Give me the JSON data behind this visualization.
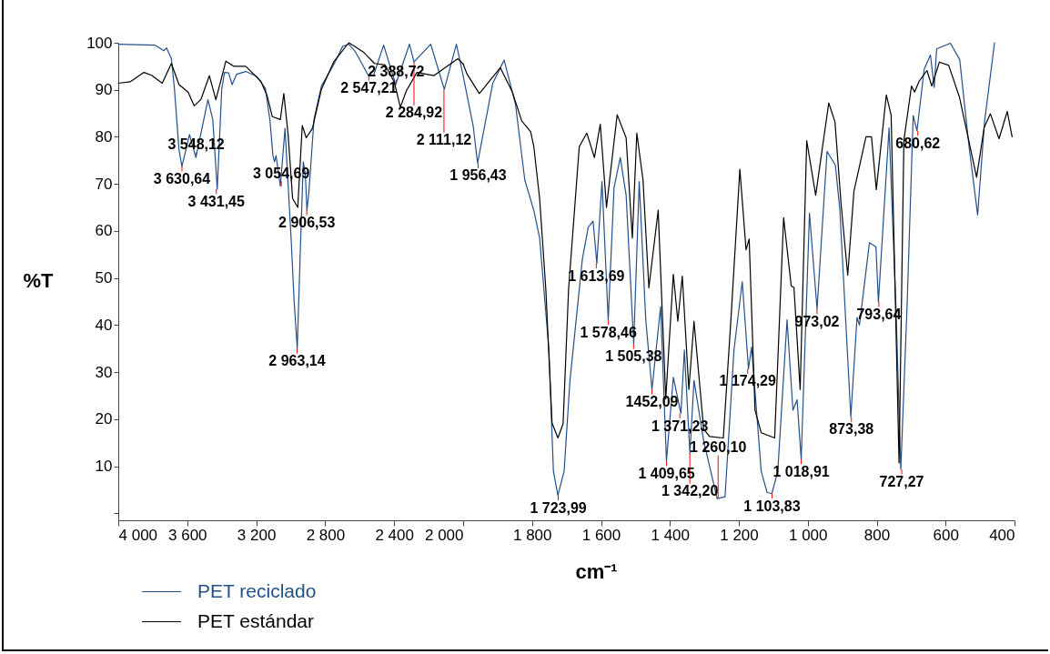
{
  "chart_data": [
    {
      "type": "line",
      "ylabel": "%T",
      "xlim": [
        4000,
        2000
      ],
      "xticks": [
        {
          "value": 4000,
          "label": "4 000"
        },
        {
          "value": 3600,
          "label": "3 600"
        },
        {
          "value": 3200,
          "label": "3 200"
        },
        {
          "value": 2800,
          "label": "2 800"
        },
        {
          "value": 2400,
          "label": "2 400"
        },
        {
          "value": 2000,
          "label": "2 000"
        }
      ],
      "ylim": [
        -1.5,
        100
      ],
      "yticks": [
        {
          "value": 0,
          "label": null
        },
        10,
        20,
        30,
        40,
        50,
        60,
        70,
        80,
        90,
        100
      ],
      "legend": "bottom left",
      "series": [
        {
          "name": "PET reciclado",
          "color": "#24508a",
          "x": [
            4000,
            3789,
            3736,
            3720,
            3692,
            3674,
            3648,
            3631,
            3587,
            3550,
            3480,
            3452,
            3426,
            3400,
            3384,
            3360,
            3340,
            3314,
            3261,
            3199,
            3147,
            3121,
            3103,
            3094,
            3085,
            3060,
            3033,
            2997,
            2980,
            2962,
            2945,
            2927,
            2915,
            2906,
            2895,
            2865,
            2822,
            2751,
            2699,
            2663,
            2627,
            2592,
            2549,
            2520,
            2461,
            2391,
            2311,
            2285,
            2188,
            2109,
            2039,
            2000
          ],
          "values": [
            99.7,
            99.5,
            98.3,
            98.9,
            96.6,
            90.1,
            77.3,
            73.7,
            80.5,
            75.6,
            87.9,
            83.7,
            68.9,
            90.1,
            93.7,
            93.6,
            91.1,
            93.3,
            93.9,
            92.9,
            90.3,
            83.7,
            76,
            74.7,
            76,
            69.5,
            81.8,
            57.9,
            45,
            35,
            55,
            74.7,
            72,
            64.4,
            68,
            83.7,
            90.8,
            95.3,
            99.2,
            99.7,
            98.2,
            95.9,
            93,
            93,
            99.5,
            91.1,
            99.7,
            95.9,
            99.7,
            90.1,
            99.7,
            93
          ]
        },
        {
          "name": "PET estándar",
          "color": "#000000",
          "x": [
            4000,
            3931,
            3851,
            3807,
            3745,
            3692,
            3648,
            3595,
            3560,
            3520,
            3472,
            3434,
            3376,
            3331,
            3261,
            3173,
            3138,
            3107,
            3060,
            3040,
            3015,
            2989,
            2959,
            2933,
            2910,
            2874,
            2822,
            2751,
            2663,
            2627,
            2575,
            2514,
            2453,
            2400,
            2364,
            2329,
            2268,
            2170,
            2109,
            2030,
            2000
          ],
          "values": [
            91.4,
            91.7,
            93.7,
            93.1,
            91.4,
            95.6,
            91.1,
            89.5,
            86.6,
            88,
            93,
            87.9,
            96.1,
            95,
            95,
            91.8,
            88.9,
            84.3,
            83.7,
            89.2,
            80.5,
            66.9,
            65,
            82.4,
            79.8,
            81.8,
            90.1,
            95.9,
            100,
            99.2,
            97.9,
            95.6,
            95.3,
            91.7,
            86.3,
            89.8,
            93.7,
            93,
            94.6,
            96.6,
            95.5
          ]
        }
      ],
      "annotations": [
        {
          "text": "3 630,64",
          "x": 3630.64,
          "y": 73.7
        },
        {
          "text": "3 548,12",
          "x": 3548.12,
          "y": 75.6
        },
        {
          "text": "3 431,45",
          "x": 3431.45,
          "y": 68.9
        },
        {
          "text": "3 054,69",
          "x": 3054.69,
          "y": 69.5
        },
        {
          "text": "2 963,14",
          "x": 2963.14,
          "y": 35
        },
        {
          "text": "2 906,53",
          "x": 2906.53,
          "y": 64.4
        },
        {
          "text": "2 547,21",
          "x": 2547.21,
          "y": 93
        },
        {
          "text": "2 388,72",
          "x": 2388.72,
          "y": 91.1
        },
        {
          "text": "2 284,92",
          "x": 2284.92,
          "y": 95.9
        },
        {
          "text": "2 111,12",
          "x": 2111.12,
          "y": 90.1
        }
      ]
    },
    {
      "type": "line",
      "xlabel": "cm⁻¹",
      "xlim": [
        2000,
        400
      ],
      "xticks": [
        {
          "value": 1800,
          "label": "1 800"
        },
        {
          "value": 1600,
          "label": "1 600"
        },
        {
          "value": 1400,
          "label": "1 400"
        },
        {
          "value": 1200,
          "label": "1 200"
        },
        {
          "value": 1000,
          "label": "1 000"
        },
        800,
        600,
        400
      ],
      "ylim": [
        -1.5,
        100
      ],
      "tick_labels": "x",
      "series": [
        {
          "color": "#24508a",
          "x": [
            2000,
            1971,
            1958,
            1914,
            1881,
            1848,
            1821,
            1795,
            1778,
            1751,
            1738,
            1725,
            1707,
            1690,
            1654,
            1637,
            1623,
            1612,
            1597,
            1579,
            1562,
            1544,
            1527,
            1505,
            1489,
            1470,
            1452,
            1427,
            1410,
            1390,
            1368,
            1358,
            1342,
            1330,
            1302,
            1263,
            1240,
            1214,
            1190,
            1172,
            1163,
            1135,
            1118,
            1104,
            1087,
            1060,
            1043,
            1031,
            1019,
            995,
            973,
            944,
            920,
            907,
            875,
            857,
            850,
            821,
            802,
            795,
            764,
            744,
            730,
            712,
            694,
            683,
            662,
            644,
            633,
            626,
            586,
            559,
            532,
            507,
            487,
            458
          ],
          "values": [
            93,
            82.4,
            74.4,
            91.4,
            96.3,
            86.9,
            70.8,
            64.4,
            58.5,
            34.7,
            8.9,
            3.8,
            8.9,
            28.2,
            54,
            60.8,
            62.1,
            53.1,
            70.5,
            41.1,
            69.2,
            75.6,
            67.6,
            36,
            70.5,
            41.1,
            26.3,
            43.9,
            11.1,
            28.9,
            21.2,
            34.7,
            12.8,
            28.2,
            15.4,
            3.1,
            3.5,
            34.7,
            49.2,
            30.7,
            35.3,
            8.9,
            4.4,
            4.2,
            8.9,
            41.1,
            21.9,
            24.1,
            11.5,
            63.8,
            43.4,
            76.9,
            74,
            64.7,
            20.5,
            41.6,
            40,
            57.5,
            56.6,
            44.9,
            81.9,
            43.6,
            9.3,
            43.6,
            84.5,
            81.3,
            94.4,
            97.4,
            90.5,
            98.7,
            99.9,
            96.4,
            78,
            63.4,
            83.2,
            100
          ]
        },
        {
          "color": "#000000",
          "x": [
            2000,
            1989,
            1953,
            1892,
            1857,
            1830,
            1804,
            1795,
            1778,
            1760,
            1742,
            1725,
            1710,
            1694,
            1663,
            1641,
            1619,
            1602,
            1584,
            1553,
            1527,
            1509,
            1496,
            1478,
            1461,
            1434,
            1412,
            1390,
            1377,
            1364,
            1345,
            1330,
            1302,
            1285,
            1245,
            1223,
            1197,
            1179,
            1170,
            1153,
            1135,
            1096,
            1070,
            1048,
            1040,
            1022,
            1003,
            977,
            939,
            921,
            903,
            884,
            866,
            831,
            815,
            801,
            772,
            758,
            735,
            721,
            699,
            690,
            677,
            654,
            640,
            618,
            591,
            560,
            533,
            510,
            488,
            470,
            445,
            421,
            407
          ],
          "values": [
            95.5,
            93.4,
            89.2,
            94.7,
            89.5,
            83.4,
            81.1,
            78,
            66.9,
            47.6,
            19.2,
            16,
            19,
            47.6,
            77.9,
            80.8,
            75.6,
            82.7,
            65,
            84.7,
            79.8,
            58.5,
            80.8,
            70.8,
            47.9,
            64.4,
            24.3,
            50.8,
            40.8,
            50.4,
            26.3,
            40.8,
            17.9,
            16.3,
            16,
            41.1,
            73.1,
            56,
            58.3,
            21.9,
            17.1,
            16,
            62.8,
            48.3,
            48,
            26.3,
            79.2,
            67.6,
            87.2,
            83.2,
            65.5,
            50.6,
            68.4,
            80,
            80,
            68.8,
            88.9,
            84.6,
            10.7,
            79.3,
            90.8,
            89.5,
            91.8,
            94.1,
            90.8,
            95.9,
            95.2,
            88.5,
            79.3,
            71.4,
            82,
            84.9,
            79.6,
            85.4,
            80
          ]
        }
      ],
      "annotations": [
        {
          "text": "1 956,43",
          "x": 1956.43,
          "y": 74.4
        },
        {
          "text": "1 723,99",
          "x": 1723.99,
          "y": 3.8
        },
        {
          "text": "1 613,69",
          "x": 1613.69,
          "y": 53.1
        },
        {
          "text": "1 578,46",
          "x": 1578.46,
          "y": 41.1
        },
        {
          "text": "1 505,38",
          "x": 1505.38,
          "y": 36
        },
        {
          "text": "1452,09",
          "x": 1452.09,
          "y": 26.3
        },
        {
          "text": "1 409,65",
          "x": 1409.65,
          "y": 11.1
        },
        {
          "text": "1 371,23",
          "x": 1371.23,
          "y": 21.2
        },
        {
          "text": "1 342,20",
          "x": 1342.2,
          "y": 12.8
        },
        {
          "text": "1 260,10",
          "x": 1260.1,
          "y": 3.1
        },
        {
          "text": "1 174,29",
          "x": 1174.29,
          "y": 30.7
        },
        {
          "text": "1 103,83",
          "x": 1103.83,
          "y": 4.2
        },
        {
          "text": "1 018,91",
          "x": 1018.91,
          "y": 11.5
        },
        {
          "text": "973,02",
          "x": 973.02,
          "y": 43.4
        },
        {
          "text": "873,38",
          "x": 873.38,
          "y": 20.5
        },
        {
          "text": "793,64",
          "x": 793.64,
          "y": 44.9
        },
        {
          "text": "727,27",
          "x": 727.27,
          "y": 9.3
        },
        {
          "text": "680,62",
          "x": 680.62,
          "y": 81.3
        }
      ]
    }
  ]
}
